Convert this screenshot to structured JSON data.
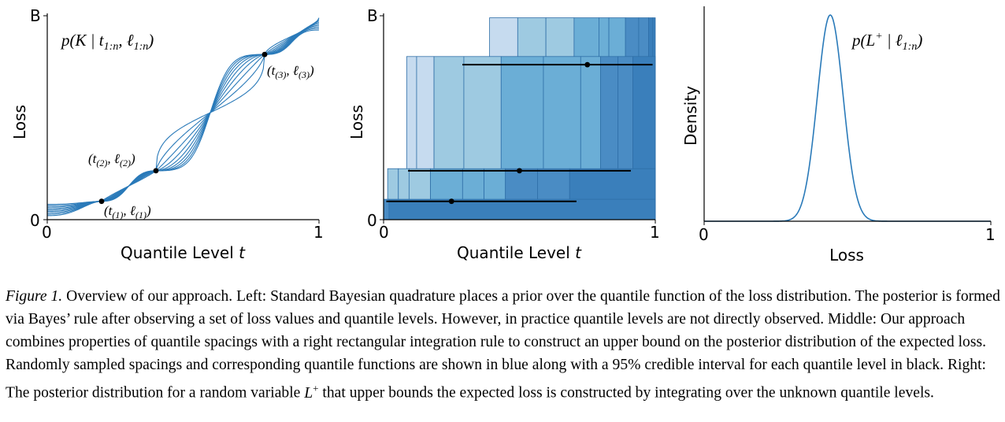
{
  "figure": {
    "left_panel": {
      "y_top_tick": "B",
      "y_zero_tick": "0",
      "x_ticks": [
        "0",
        "1"
      ],
      "ylabel": "Loss",
      "xlabel": "Quantile Level t",
      "formula": "p(K | t1:n, ℓ1:n)",
      "points": [
        {
          "label": "(t(1), ℓ(1))",
          "t": 0.2,
          "loss": 0.09
        },
        {
          "label": "(t(2), ℓ(2))",
          "t": 0.4,
          "loss": 0.24
        },
        {
          "label": "(t(3), ℓ(3))",
          "t": 0.8,
          "loss": 0.81
        }
      ],
      "curve_color": "#2a7ab9",
      "sample_count": 9
    },
    "middle_panel": {
      "y_top_tick": "B",
      "y_zero_tick": "0",
      "x_ticks": [
        "0",
        "1"
      ],
      "ylabel": "Loss",
      "xlabel": "Quantile Level t",
      "credible_intervals": [
        {
          "loss": 0.09,
          "low": 0.01,
          "high": 0.71,
          "point": 0.25
        },
        {
          "loss": 0.24,
          "low": 0.09,
          "high": 0.91,
          "point": 0.5
        },
        {
          "loss": 0.76,
          "low": 0.29,
          "high": 0.99,
          "point": 0.75
        }
      ],
      "bar_colors": [
        "#c6dbef",
        "#9ecae1",
        "#6baed6",
        "#4a8cc4",
        "#3a7fbb"
      ],
      "interval_color": "#000000"
    },
    "right_panel": {
      "x_ticks": [
        "0",
        "1"
      ],
      "ylabel": "Density",
      "xlabel": "Loss",
      "formula": "p(L+ | ℓ1:n)",
      "peak_loss": 0.44,
      "curve_color": "#2a7ab9"
    }
  },
  "caption": {
    "label": "Figure 1.",
    "text": "Overview of our approach. Left: Standard Bayesian quadrature places a prior over the quantile function of the loss distribution. The posterior is formed via Bayes’ rule after observing a set of loss values and quantile levels. However, in practice quantile levels are not directly observed. Middle: Our approach combines properties of quantile spacings with a right rectangular integration rule to construct an upper bound on the posterior distribution of the expected loss. Randomly sampled spacings and corresponding quantile functions are shown in blue along with a 95% credible interval for each quantile level in black. Right: The posterior distribution for a random variable",
    "var_base": "L",
    "var_sup": "+",
    "tail": "that upper bounds the expected loss is constructed by integrating over the unknown quantile levels."
  }
}
